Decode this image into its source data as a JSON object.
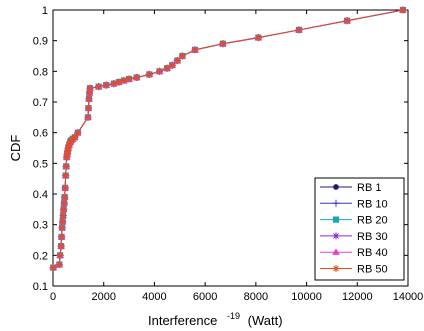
{
  "chart_data": {
    "type": "line",
    "title": "",
    "xlabel": "Interference",
    "xlabel_exp": "-19",
    "xlabel_unit": "(Watt)",
    "ylabel": "CDF",
    "xlim": [
      0,
      14000
    ],
    "ylim": [
      0.1,
      1
    ],
    "xticks": [
      0,
      2000,
      4000,
      6000,
      8000,
      10000,
      12000,
      14000
    ],
    "yticks": [
      0.1,
      0.2,
      0.3,
      0.4,
      0.5,
      0.6,
      0.7,
      0.8,
      0.9,
      1
    ],
    "grid": false,
    "legend_position": "bottom-right",
    "x": [
      10,
      250,
      280,
      320,
      340,
      360,
      380,
      400,
      420,
      440,
      460,
      480,
      500,
      520,
      540,
      560,
      580,
      600,
      640,
      680,
      720,
      780,
      860,
      980,
      1380,
      1400,
      1420,
      1440,
      1460,
      1800,
      2100,
      2400,
      2600,
      2800,
      3000,
      3300,
      3800,
      4200,
      4500,
      4700,
      4900,
      5100,
      5600,
      6700,
      8100,
      9700,
      11600,
      13800
    ],
    "y": [
      0.16,
      0.17,
      0.2,
      0.23,
      0.26,
      0.29,
      0.31,
      0.33,
      0.35,
      0.37,
      0.39,
      0.42,
      0.46,
      0.49,
      0.52,
      0.53,
      0.54,
      0.55,
      0.56,
      0.57,
      0.575,
      0.58,
      0.585,
      0.6,
      0.65,
      0.68,
      0.71,
      0.73,
      0.745,
      0.75,
      0.755,
      0.76,
      0.765,
      0.77,
      0.775,
      0.78,
      0.79,
      0.8,
      0.81,
      0.82,
      0.835,
      0.85,
      0.87,
      0.89,
      0.91,
      0.935,
      0.965,
      1.0
    ],
    "series": [
      {
        "name": "RB 1",
        "color": "#1f1f7a",
        "marker": "circle"
      },
      {
        "name": "RB 10",
        "color": "#3333cc",
        "marker": "plus"
      },
      {
        "name": "RB 20",
        "color": "#17a7b5",
        "marker": "square"
      },
      {
        "name": "RB 30",
        "color": "#8a2be2",
        "marker": "star"
      },
      {
        "name": "RB 40",
        "color": "#e040e0",
        "marker": "triangle"
      },
      {
        "name": "RB 50",
        "color": "#e0501a",
        "marker": "star"
      }
    ]
  }
}
